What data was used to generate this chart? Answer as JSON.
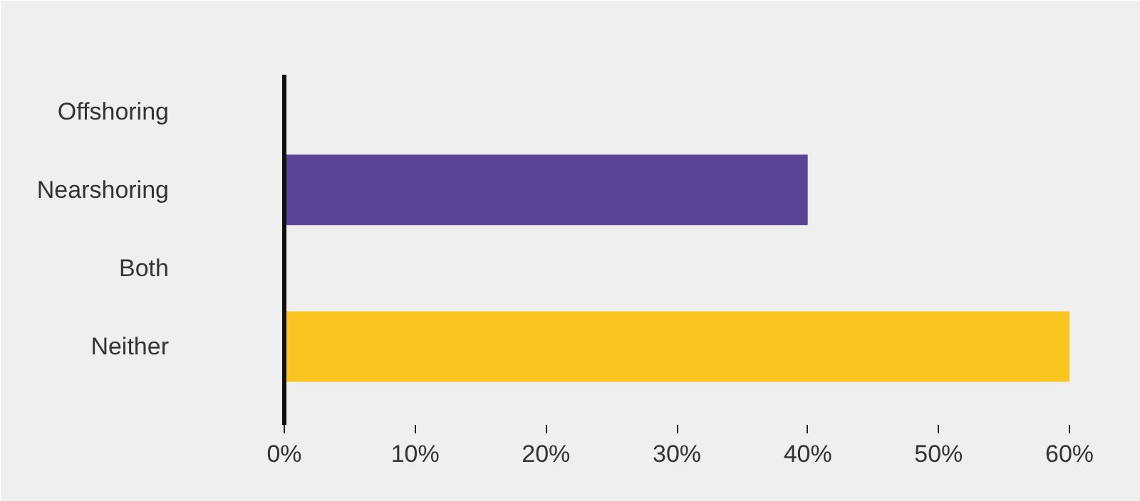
{
  "chart_data": {
    "type": "bar",
    "orientation": "horizontal",
    "categories": [
      "Offshoring",
      "Nearshoring",
      "Both",
      "Neither"
    ],
    "values": [
      0,
      40,
      0,
      60
    ],
    "colors": [
      "#5b4496",
      "#5b4496",
      "#fbc520",
      "#fbc520"
    ],
    "xlim": [
      0,
      60
    ],
    "xticks": [
      {
        "value": 0,
        "label": "0%"
      },
      {
        "value": 10,
        "label": "10%"
      },
      {
        "value": 20,
        "label": "20%"
      },
      {
        "value": 30,
        "label": "30%"
      },
      {
        "value": 40,
        "label": "40%"
      },
      {
        "value": 50,
        "label": "50%"
      },
      {
        "value": 60,
        "label": "60%"
      }
    ],
    "grid": false
  }
}
